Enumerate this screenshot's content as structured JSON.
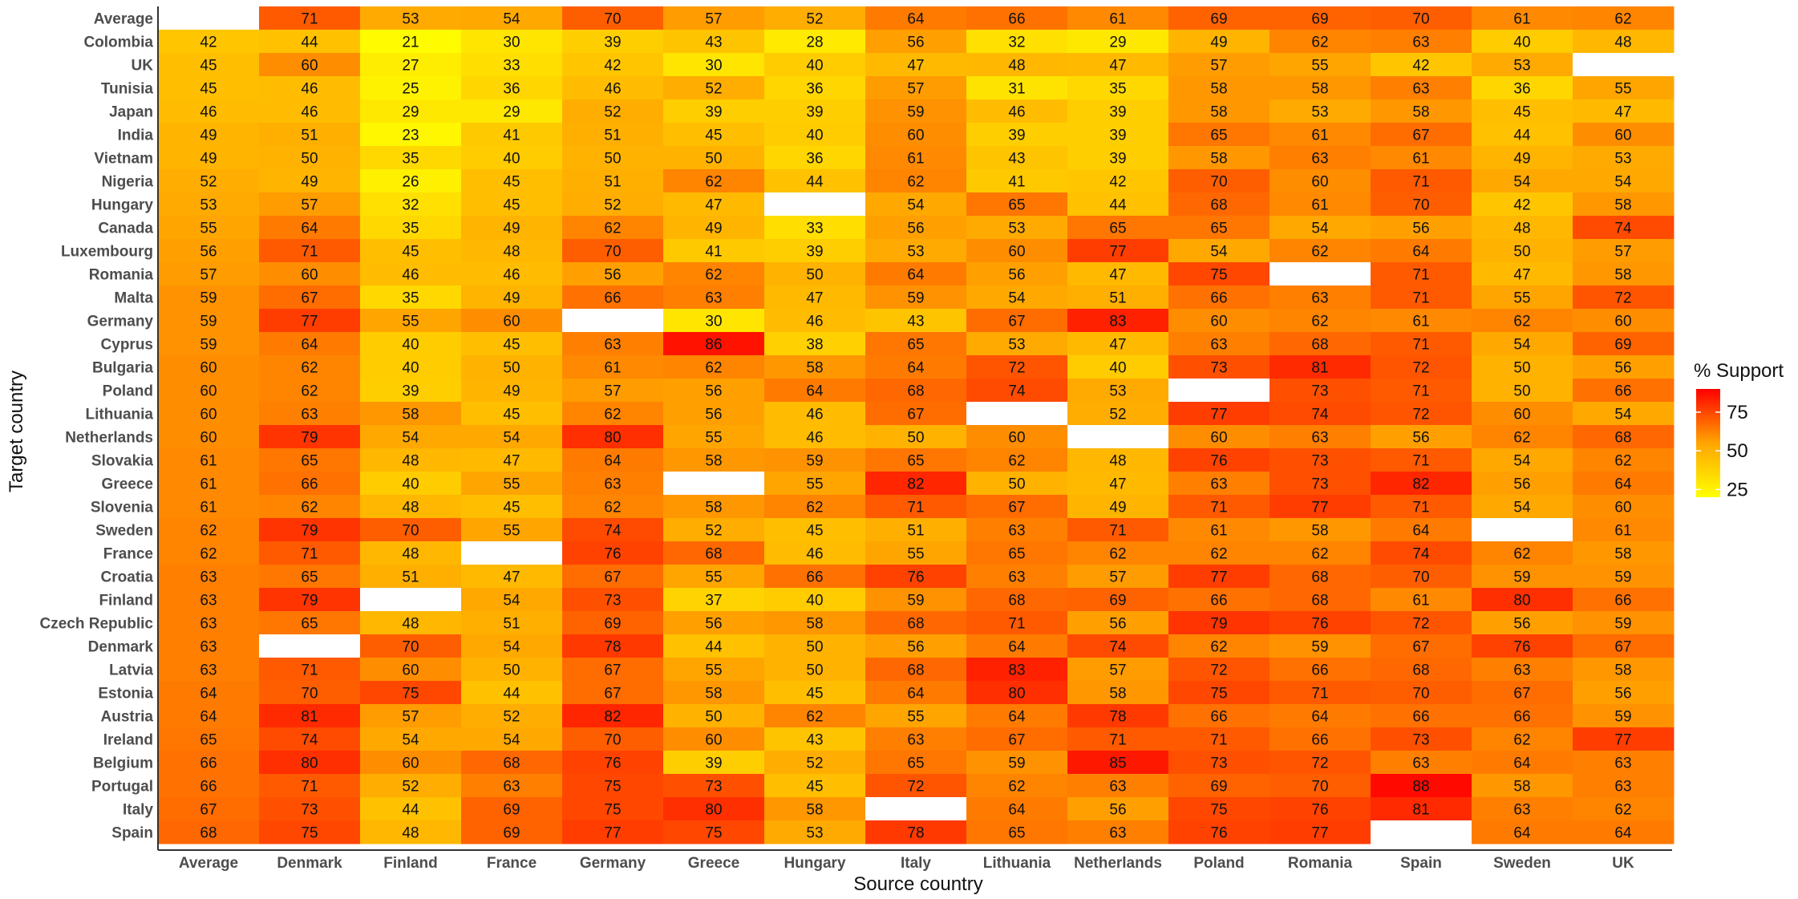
{
  "chart_data": {
    "type": "heatmap",
    "xlabel": "Source country",
    "ylabel": "Target country",
    "legend": {
      "title": "% Support",
      "ticks": [
        75,
        50,
        25
      ],
      "position": "right",
      "color_low": "#FFFF00",
      "color_mid": "#FFA500",
      "color_high": "#FF0000",
      "range": [
        20,
        90
      ]
    },
    "columns": [
      "Average",
      "Denmark",
      "Finland",
      "France",
      "Germany",
      "Greece",
      "Hungary",
      "Italy",
      "Lithuania",
      "Netherlands",
      "Poland",
      "Romania",
      "Spain",
      "Sweden",
      "UK"
    ],
    "rows": [
      {
        "name": "Average",
        "values": [
          null,
          71,
          53,
          54,
          70,
          57,
          52,
          64,
          66,
          61,
          69,
          69,
          70,
          61,
          62
        ]
      },
      {
        "name": "Colombia",
        "values": [
          42,
          44,
          21,
          30,
          39,
          43,
          28,
          56,
          32,
          29,
          49,
          62,
          63,
          40,
          48
        ]
      },
      {
        "name": "UK",
        "values": [
          45,
          60,
          27,
          33,
          42,
          30,
          40,
          47,
          48,
          47,
          57,
          55,
          42,
          53,
          null
        ]
      },
      {
        "name": "Tunisia",
        "values": [
          45,
          46,
          25,
          36,
          46,
          52,
          36,
          57,
          31,
          35,
          58,
          58,
          63,
          36,
          55
        ]
      },
      {
        "name": "Japan",
        "values": [
          46,
          46,
          29,
          29,
          52,
          39,
          39,
          59,
          46,
          39,
          58,
          53,
          58,
          45,
          47
        ]
      },
      {
        "name": "India",
        "values": [
          49,
          51,
          23,
          41,
          51,
          45,
          40,
          60,
          39,
          39,
          65,
          61,
          67,
          44,
          60
        ]
      },
      {
        "name": "Vietnam",
        "values": [
          49,
          50,
          35,
          40,
          50,
          50,
          36,
          61,
          43,
          39,
          58,
          63,
          61,
          49,
          53
        ]
      },
      {
        "name": "Nigeria",
        "values": [
          52,
          49,
          26,
          45,
          51,
          62,
          44,
          62,
          41,
          42,
          70,
          60,
          71,
          54,
          54
        ]
      },
      {
        "name": "Hungary",
        "values": [
          53,
          57,
          32,
          45,
          52,
          47,
          null,
          54,
          65,
          44,
          68,
          61,
          70,
          42,
          58
        ]
      },
      {
        "name": "Canada",
        "values": [
          55,
          64,
          35,
          49,
          62,
          49,
          33,
          56,
          53,
          65,
          65,
          54,
          56,
          48,
          74
        ]
      },
      {
        "name": "Luxembourg",
        "values": [
          56,
          71,
          45,
          48,
          70,
          41,
          39,
          53,
          60,
          77,
          54,
          62,
          64,
          50,
          57
        ]
      },
      {
        "name": "Romania",
        "values": [
          57,
          60,
          46,
          46,
          56,
          62,
          50,
          64,
          56,
          47,
          75,
          null,
          71,
          47,
          58
        ]
      },
      {
        "name": "Malta",
        "values": [
          59,
          67,
          35,
          49,
          66,
          63,
          47,
          59,
          54,
          51,
          66,
          63,
          71,
          55,
          72
        ]
      },
      {
        "name": "Germany",
        "values": [
          59,
          77,
          55,
          60,
          null,
          30,
          46,
          43,
          67,
          83,
          60,
          62,
          61,
          62,
          60
        ]
      },
      {
        "name": "Cyprus",
        "values": [
          59,
          64,
          40,
          45,
          63,
          86,
          38,
          65,
          53,
          47,
          63,
          68,
          71,
          54,
          69
        ]
      },
      {
        "name": "Bulgaria",
        "values": [
          60,
          62,
          40,
          50,
          61,
          62,
          58,
          64,
          72,
          40,
          73,
          81,
          72,
          50,
          56
        ]
      },
      {
        "name": "Poland",
        "values": [
          60,
          62,
          39,
          49,
          57,
          56,
          64,
          68,
          74,
          53,
          null,
          73,
          71,
          50,
          66
        ]
      },
      {
        "name": "Lithuania",
        "values": [
          60,
          63,
          58,
          45,
          62,
          56,
          46,
          67,
          null,
          52,
          77,
          74,
          72,
          60,
          54
        ]
      },
      {
        "name": "Netherlands",
        "values": [
          60,
          79,
          54,
          54,
          80,
          55,
          46,
          50,
          60,
          null,
          60,
          63,
          56,
          62,
          68
        ]
      },
      {
        "name": "Slovakia",
        "values": [
          61,
          65,
          48,
          47,
          64,
          58,
          59,
          65,
          62,
          48,
          76,
          73,
          71,
          54,
          62
        ]
      },
      {
        "name": "Greece",
        "values": [
          61,
          66,
          40,
          55,
          63,
          null,
          55,
          82,
          50,
          47,
          63,
          73,
          82,
          56,
          64
        ]
      },
      {
        "name": "Slovenia",
        "values": [
          61,
          62,
          48,
          45,
          62,
          58,
          62,
          71,
          67,
          49,
          71,
          77,
          71,
          54,
          60
        ]
      },
      {
        "name": "Sweden",
        "values": [
          62,
          79,
          70,
          55,
          74,
          52,
          45,
          51,
          63,
          71,
          61,
          58,
          64,
          null,
          61
        ]
      },
      {
        "name": "France",
        "values": [
          62,
          71,
          48,
          null,
          76,
          68,
          46,
          55,
          65,
          62,
          62,
          62,
          74,
          62,
          58
        ]
      },
      {
        "name": "Croatia",
        "values": [
          63,
          65,
          51,
          47,
          67,
          55,
          66,
          76,
          63,
          57,
          77,
          68,
          70,
          59,
          59
        ]
      },
      {
        "name": "Finland",
        "values": [
          63,
          79,
          null,
          54,
          73,
          37,
          40,
          59,
          68,
          69,
          66,
          68,
          61,
          80,
          66
        ]
      },
      {
        "name": "Czech Republic",
        "values": [
          63,
          65,
          48,
          51,
          69,
          56,
          58,
          68,
          71,
          56,
          79,
          76,
          72,
          56,
          59
        ]
      },
      {
        "name": "Denmark",
        "values": [
          63,
          null,
          70,
          54,
          78,
          44,
          50,
          56,
          64,
          74,
          62,
          59,
          67,
          76,
          67
        ]
      },
      {
        "name": "Latvia",
        "values": [
          63,
          71,
          60,
          50,
          67,
          55,
          50,
          68,
          83,
          57,
          72,
          66,
          68,
          63,
          58
        ]
      },
      {
        "name": "Estonia",
        "values": [
          64,
          70,
          75,
          44,
          67,
          58,
          45,
          64,
          80,
          58,
          75,
          71,
          70,
          67,
          56
        ]
      },
      {
        "name": "Austria",
        "values": [
          64,
          81,
          57,
          52,
          82,
          50,
          62,
          55,
          64,
          78,
          66,
          64,
          66,
          66,
          59
        ]
      },
      {
        "name": "Ireland",
        "values": [
          65,
          74,
          54,
          54,
          70,
          60,
          43,
          63,
          67,
          71,
          71,
          66,
          73,
          62,
          77
        ]
      },
      {
        "name": "Belgium",
        "values": [
          66,
          80,
          60,
          68,
          76,
          39,
          52,
          65,
          59,
          85,
          73,
          72,
          63,
          64,
          63
        ]
      },
      {
        "name": "Portugal",
        "values": [
          66,
          71,
          52,
          63,
          75,
          73,
          45,
          72,
          62,
          63,
          69,
          70,
          88,
          58,
          63
        ]
      },
      {
        "name": "Italy",
        "values": [
          67,
          73,
          44,
          69,
          75,
          80,
          58,
          null,
          64,
          56,
          75,
          76,
          81,
          63,
          62
        ]
      },
      {
        "name": "Spain",
        "values": [
          68,
          75,
          48,
          69,
          77,
          75,
          53,
          78,
          65,
          63,
          76,
          77,
          null,
          64,
          64
        ]
      }
    ]
  }
}
